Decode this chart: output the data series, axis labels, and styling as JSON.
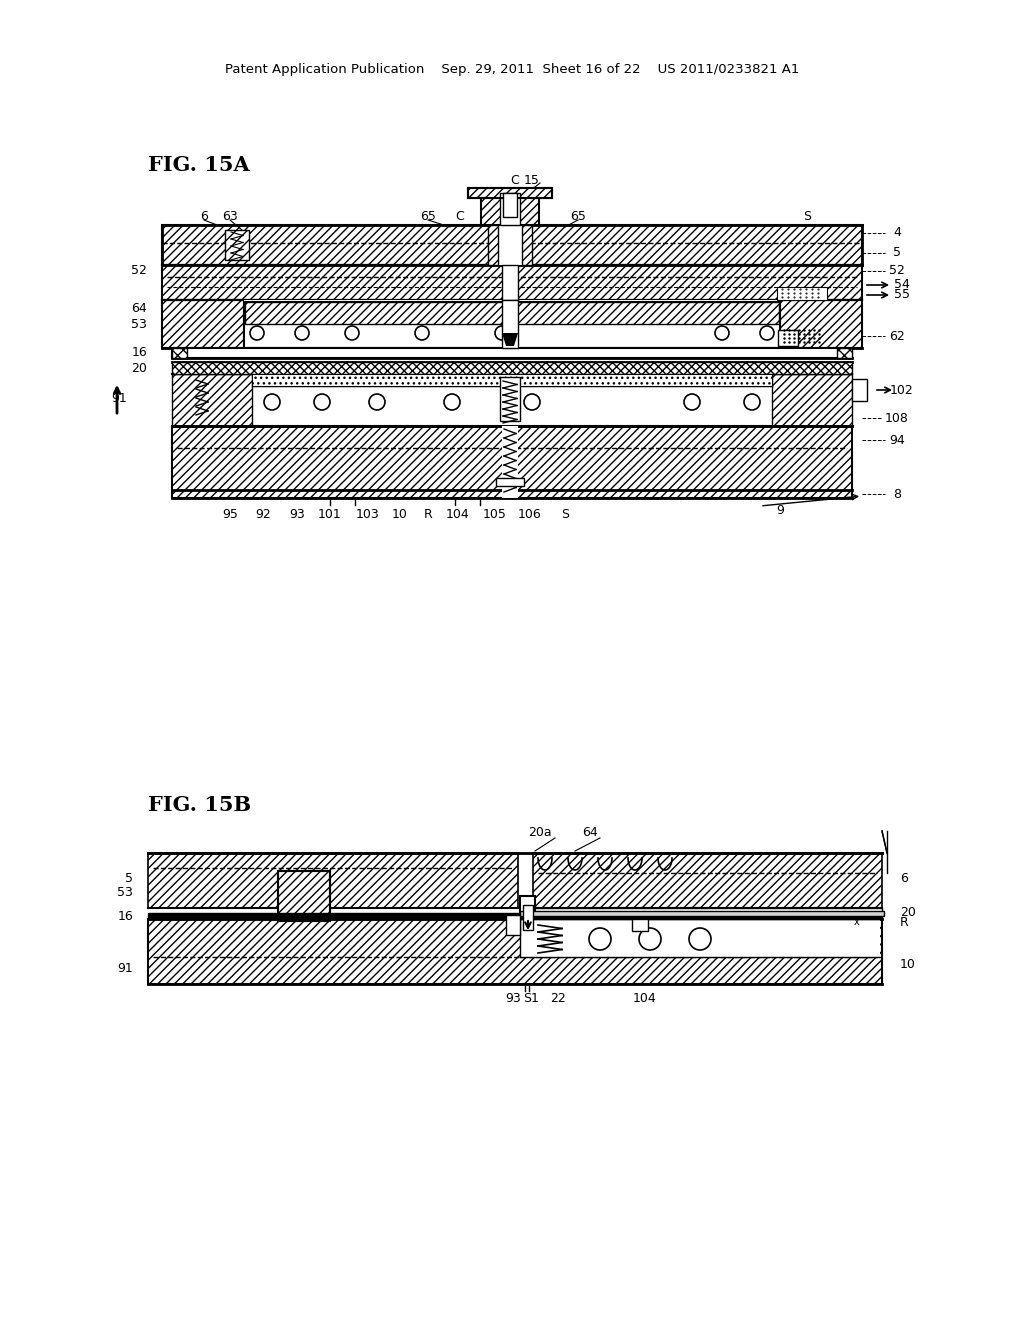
{
  "bg_color": "#ffffff",
  "header_text": "Patent Application Publication    Sep. 29, 2011  Sheet 16 of 22    US 2011/0233821 A1",
  "fig15a_label": "FIG. 15A",
  "fig15b_label": "FIG. 15B"
}
